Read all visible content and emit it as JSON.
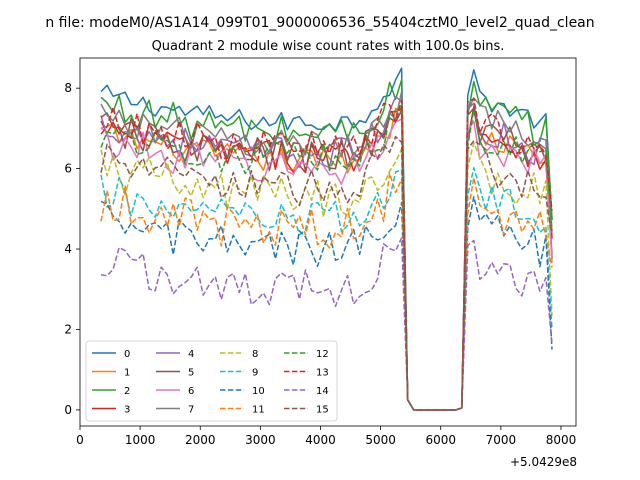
{
  "figure": {
    "suptitle": "n file: modeM0/AS1A14_099T01_9000006536_55404cztM0_level2_quad_clean",
    "title": "Quadrant 2 module wise count rates with 100.0s bins.",
    "x_offset_text": "+5.0429e8"
  },
  "chart_data": {
    "type": "line",
    "title": "Quadrant 2 module wise count rates with 100.0s bins.",
    "xlabel": "",
    "ylabel": "",
    "xlim": [
      0,
      8250
    ],
    "ylim": [
      -0.4,
      8.75
    ],
    "xticks": [
      0,
      1000,
      2000,
      3000,
      4000,
      5000,
      6000,
      7000,
      8000
    ],
    "yticks": [
      0,
      2,
      4,
      6,
      8
    ],
    "x": [
      350,
      6600
    ],
    "legend_loc": "lower-left",
    "series": [
      {
        "name": "0",
        "color": "#1f77b4",
        "dash": "solid",
        "base": 7.25,
        "noise": 0.12
      },
      {
        "name": "1",
        "color": "#ff7f0e",
        "dash": "solid",
        "base": 6.3,
        "noise": 0.15
      },
      {
        "name": "2",
        "color": "#2ca02c",
        "dash": "solid",
        "base": 7.0,
        "noise": 0.2
      },
      {
        "name": "3",
        "color": "#d62728",
        "dash": "solid",
        "base": 6.4,
        "noise": 0.18
      },
      {
        "name": "4",
        "color": "#9467bd",
        "dash": "solid",
        "base": 6.5,
        "noise": 0.18
      },
      {
        "name": "5",
        "color": "#8c564b",
        "dash": "solid",
        "base": 6.4,
        "noise": 0.2
      },
      {
        "name": "6",
        "color": "#e377c2",
        "dash": "solid",
        "base": 6.1,
        "noise": 0.2
      },
      {
        "name": "7",
        "color": "#7f7f7f",
        "dash": "solid",
        "base": 6.7,
        "noise": 0.18
      },
      {
        "name": "8",
        "color": "#bcbd22",
        "dash": "dashed",
        "base": 5.4,
        "noise": 0.25
      },
      {
        "name": "9",
        "color": "#17becf",
        "dash": "dashed",
        "base": 4.8,
        "noise": 0.22
      },
      {
        "name": "10",
        "color": "#1f77b4",
        "dash": "dashed",
        "base": 4.1,
        "noise": 0.22
      },
      {
        "name": "11",
        "color": "#ff7f0e",
        "dash": "dashed",
        "base": 4.6,
        "noise": 0.25
      },
      {
        "name": "12",
        "color": "#2ca02c",
        "dash": "dashed",
        "base": 6.3,
        "noise": 0.2
      },
      {
        "name": "13",
        "color": "#d62728",
        "dash": "dashed",
        "base": 6.6,
        "noise": 0.2
      },
      {
        "name": "14",
        "color": "#9467bd",
        "dash": "dashed",
        "base": 3.1,
        "noise": 0.22
      },
      {
        "name": "15",
        "color": "#8c564b",
        "dash": "dashed",
        "base": 5.6,
        "noise": 0.22
      }
    ],
    "profile": {
      "start_x": 350,
      "end_x": 7850,
      "bin": 100,
      "gap_start_x": 5450,
      "gap_end_x": 6350,
      "peak_before_gap_x": 5350,
      "peak_after_gap_x": 6550
    }
  }
}
